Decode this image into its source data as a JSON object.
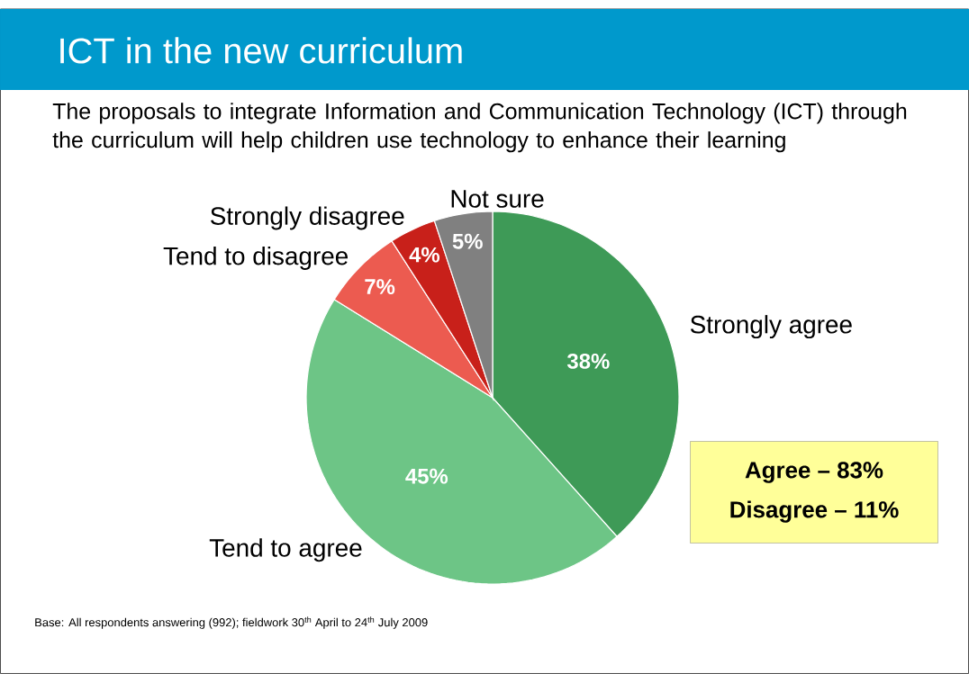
{
  "chart_data": {
    "type": "pie",
    "title": "ICT in the new curriculum",
    "subtitle": "The proposals to integrate Information and Communication Technology (ICT) through the curriculum will help children use technology to enhance their learning",
    "categories": [
      "Strongly agree",
      "Tend to agree",
      "Tend to disagree",
      "Strongly disagree",
      "Not sure"
    ],
    "values": [
      38,
      45,
      7,
      4,
      5
    ],
    "value_labels": [
      "38%",
      "45%",
      "7%",
      "4%",
      "5%"
    ],
    "colors": [
      "#3e9a57",
      "#6dc586",
      "#ec5b50",
      "#c8201a",
      "#808080"
    ],
    "annotations": [
      "Agree – 83%",
      "Disagree – 11%",
      "Base: All respondents answering (992); fieldwork 30$^{th}$ April to 24$^{th}$ July 2009"
    ]
  }
}
